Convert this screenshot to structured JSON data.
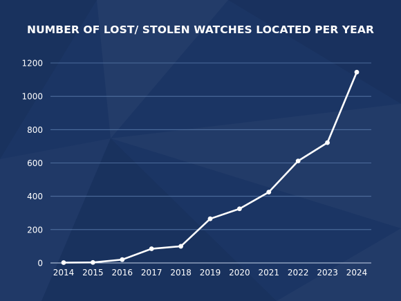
{
  "chart_data": {
    "type": "line",
    "title": "NUMBER OF LOST/ STOLEN WATCHES LOCATED PER YEAR",
    "xlabel": "",
    "ylabel": "",
    "categories": [
      "2014",
      "2015",
      "2016",
      "2017",
      "2018",
      "2019",
      "2020",
      "2021",
      "2022",
      "2023",
      "2024"
    ],
    "series": [
      {
        "values": [
          2,
          3,
          20,
          85,
          100,
          265,
          325,
          425,
          612,
          722,
          1145
        ]
      }
    ],
    "ylim": [
      0,
      1200
    ],
    "yticks": [
      0,
      200,
      400,
      600,
      800,
      1000,
      1200
    ],
    "grid": true,
    "legend": "none"
  },
  "colors": {
    "background": "#1b3564",
    "line": "#ffffff",
    "grid": "#5d7eae",
    "text": "#ffffff"
  }
}
